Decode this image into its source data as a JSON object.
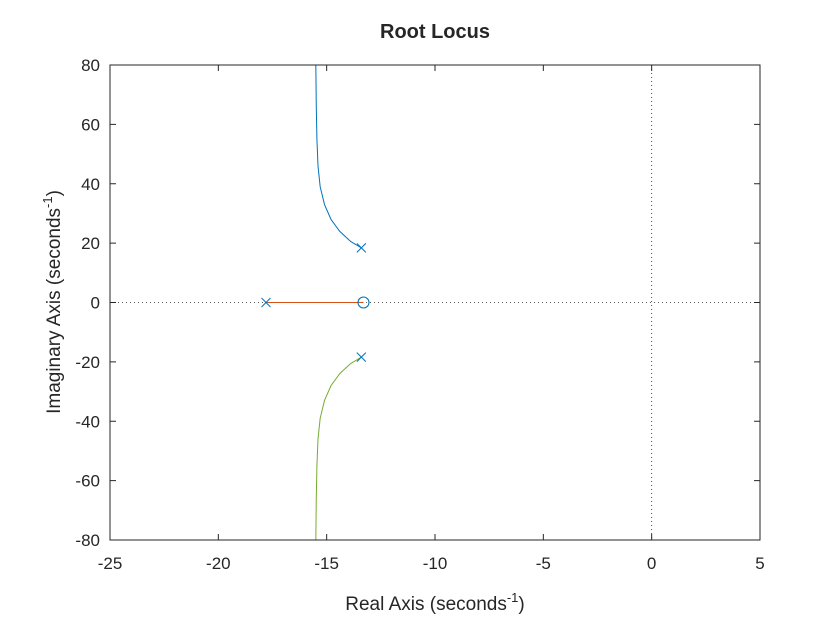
{
  "chart_data": {
    "type": "line",
    "title": "Root Locus",
    "xlabel": {
      "text": "Real Axis (seconds",
      "sup": "-1",
      "close": ")"
    },
    "ylabel": {
      "text": "Imaginary Axis (seconds",
      "sup": "-1",
      "close": ")"
    },
    "xlim": [
      -25,
      5
    ],
    "ylim": [
      -80,
      80
    ],
    "xticks": [
      -25,
      -20,
      -15,
      -10,
      -5,
      0,
      5
    ],
    "yticks": [
      -80,
      -60,
      -40,
      -20,
      0,
      20,
      40,
      60,
      80
    ],
    "xtick_labels": [
      "-25",
      "-20",
      "-15",
      "-10",
      "-5",
      "0",
      "5"
    ],
    "ytick_labels": [
      "-80",
      "-60",
      "-40",
      "-20",
      "0",
      "20",
      "40",
      "60",
      "80"
    ],
    "grid": false,
    "reference_lines": {
      "x": 0,
      "y": 0,
      "style": "dotted"
    },
    "poles": [
      {
        "x": -13.4,
        "y": 18.4
      },
      {
        "x": -17.8,
        "y": 0
      },
      {
        "x": -13.4,
        "y": -18.4
      }
    ],
    "zeros": [
      {
        "x": -13.3,
        "y": 0
      }
    ],
    "series": [
      {
        "color": "#0072BD",
        "x": [
          -13.4,
          -13.9,
          -14.4,
          -14.8,
          -15.1,
          -15.3,
          -15.4,
          -15.45,
          -15.48,
          -15.5
        ],
        "y": [
          18.4,
          20.6,
          24.0,
          28.0,
          33.0,
          39.0,
          46.0,
          55.0,
          66.0,
          80.0
        ]
      },
      {
        "color": "#D95319",
        "x": [
          -17.8,
          -13.3
        ],
        "y": [
          0,
          0
        ]
      },
      {
        "color": "#77AC30",
        "x": [
          -13.4,
          -13.9,
          -14.4,
          -14.8,
          -15.1,
          -15.3,
          -15.4,
          -15.45,
          -15.48,
          -15.5
        ],
        "y": [
          -18.4,
          -20.6,
          -24.0,
          -28.0,
          -33.0,
          -39.0,
          -46.0,
          -55.0,
          -66.0,
          -80.0
        ]
      }
    ],
    "marker_color": "#0072BD"
  }
}
